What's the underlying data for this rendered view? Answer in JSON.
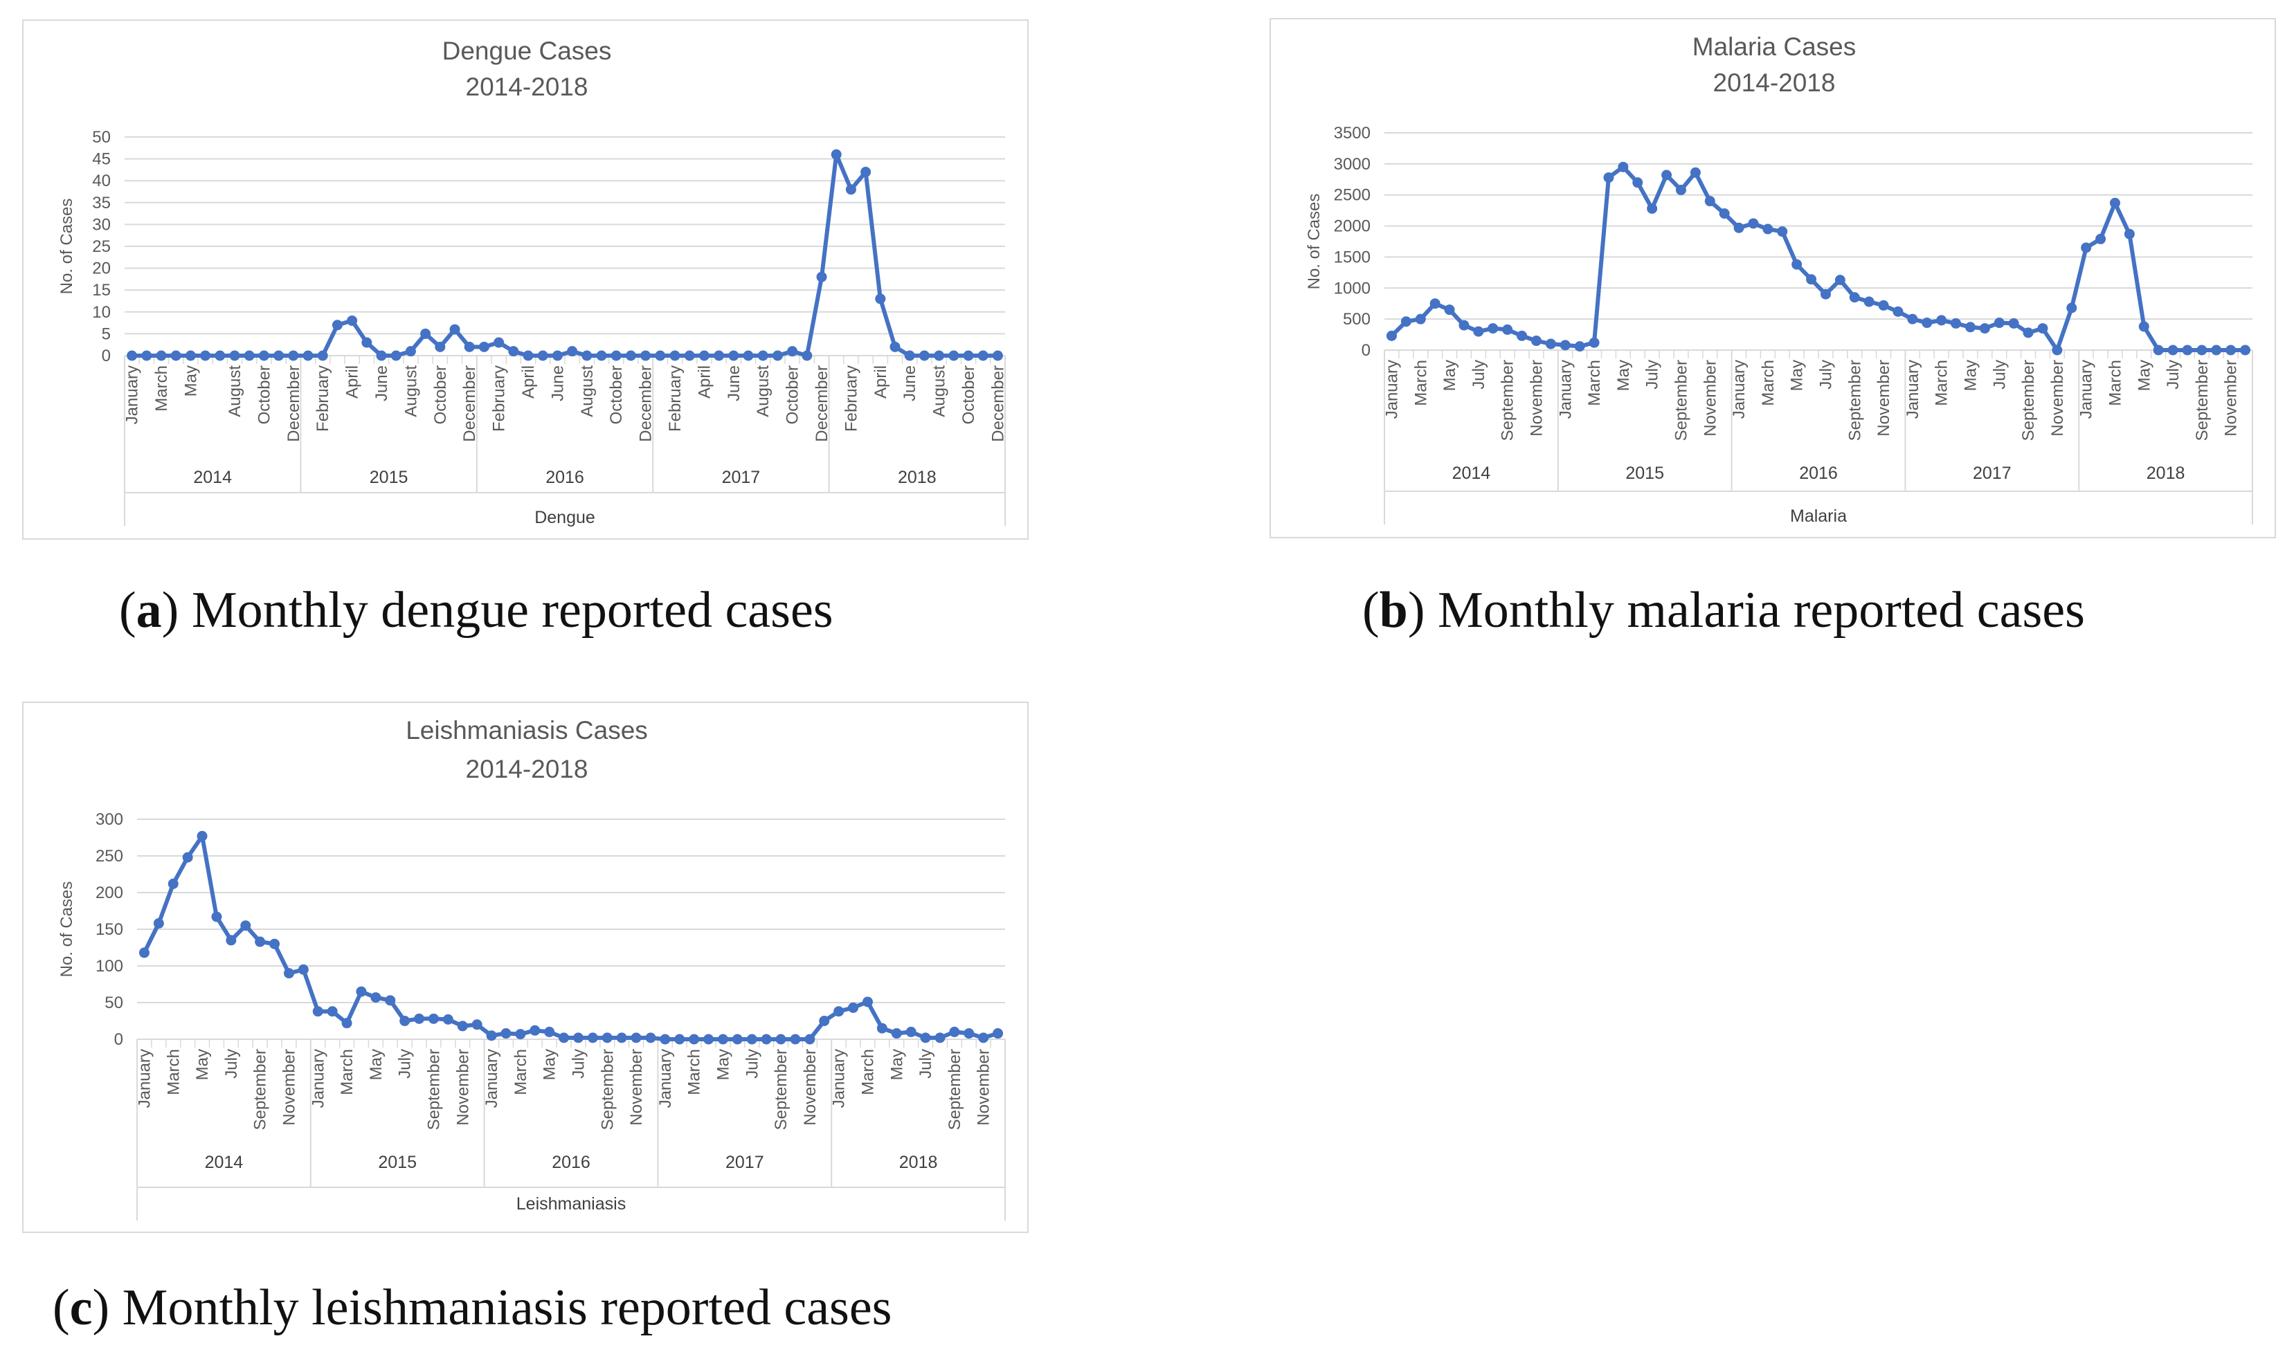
{
  "colors": {
    "series": "#4472c4",
    "grid": "#d9d9d9",
    "text": "#595959",
    "border": "#d9d9d9"
  },
  "captions": {
    "a": {
      "letter": "a",
      "text": " Monthly dengue reported  cases"
    },
    "b": {
      "letter": "b",
      "text": " Monthly malaria reported  cases"
    },
    "c": {
      "letter": "c",
      "text": " Monthly leishmaniasis reported  cases"
    }
  },
  "chart_data": [
    {
      "type": "line",
      "title": "Dengue Cases",
      "subtitle": "2014-2018",
      "ylabel": "No. of Cases",
      "xlabel": "Dengue",
      "ylim": [
        0,
        50
      ],
      "yticks": [
        0,
        5,
        10,
        15,
        20,
        25,
        30,
        35,
        40,
        45,
        50
      ],
      "grid": true,
      "legend": "none",
      "groups": [
        "2014",
        "2015",
        "2016",
        "2017",
        "2018"
      ],
      "tick_months": [
        "January",
        "March",
        "May",
        "August",
        "October",
        "December",
        "February",
        "April",
        "June",
        "August",
        "October",
        "December",
        "February",
        "April",
        "June",
        "August",
        "October",
        "December",
        "February",
        "April",
        "June",
        "August",
        "October",
        "December",
        "February",
        "April",
        "June",
        "August",
        "October",
        "December"
      ],
      "tick_positions": [
        0,
        2,
        4,
        7,
        9,
        11,
        13,
        15,
        17,
        19,
        21,
        23,
        25,
        27,
        29,
        31,
        33,
        35,
        37,
        39,
        41,
        43,
        45,
        47,
        49,
        51,
        53,
        55,
        57,
        59
      ],
      "group_boundaries": [
        0,
        11.5,
        23.5,
        35.5,
        47.5,
        59
      ],
      "series": [
        {
          "name": "Dengue",
          "values": [
            0,
            0,
            0,
            0,
            0,
            0,
            0,
            0,
            0,
            0,
            0,
            0,
            0,
            0,
            7,
            8,
            3,
            0,
            0,
            1,
            5,
            2,
            6,
            2,
            2,
            3,
            1,
            0,
            0,
            0,
            1,
            0,
            0,
            0,
            0,
            0,
            0,
            0,
            0,
            0,
            0,
            0,
            0,
            0,
            0,
            1,
            0,
            18,
            46,
            38,
            42,
            13,
            2,
            0,
            0,
            0,
            0,
            0,
            0,
            0
          ]
        }
      ]
    },
    {
      "type": "line",
      "title": "Malaria Cases",
      "subtitle": "2014-2018",
      "ylabel": "No. of Cases",
      "xlabel": "Malaria",
      "ylim": [
        0,
        3500
      ],
      "yticks": [
        0,
        500,
        1000,
        1500,
        2000,
        2500,
        3000,
        3500
      ],
      "grid": true,
      "legend": "none",
      "groups": [
        "2014",
        "2015",
        "2016",
        "2017",
        "2018"
      ],
      "tick_months": [
        "January",
        "March",
        "May",
        "July",
        "September",
        "November",
        "January",
        "March",
        "May",
        "July",
        "September",
        "November",
        "January",
        "March",
        "May",
        "July",
        "September",
        "November",
        "January",
        "March",
        "May",
        "July",
        "September",
        "November",
        "January",
        "March",
        "May",
        "July",
        "September",
        "November"
      ],
      "tick_positions": [
        0,
        2,
        4,
        6,
        8,
        10,
        12,
        14,
        16,
        18,
        20,
        22,
        24,
        26,
        28,
        30,
        32,
        34,
        36,
        38,
        40,
        42,
        44,
        46,
        48,
        50,
        52,
        54,
        56,
        58
      ],
      "group_boundaries": [
        0,
        12,
        24,
        36,
        48,
        59
      ],
      "series": [
        {
          "name": "Malaria",
          "values": [
            230,
            460,
            500,
            750,
            650,
            400,
            300,
            350,
            330,
            230,
            150,
            100,
            80,
            60,
            120,
            2780,
            2950,
            2700,
            2280,
            2820,
            2580,
            2860,
            2400,
            2200,
            1970,
            2040,
            1950,
            1910,
            1380,
            1140,
            900,
            1130,
            850,
            780,
            720,
            620,
            500,
            440,
            480,
            430,
            370,
            350,
            440,
            430,
            280,
            350,
            0,
            680,
            1650,
            1790,
            2370,
            1870,
            380,
            0,
            0,
            0,
            0,
            0,
            0,
            0
          ]
        }
      ]
    },
    {
      "type": "line",
      "title": "Leishmaniasis Cases",
      "subtitle": "2014-2018",
      "ylabel": "No. of Cases",
      "xlabel": "Leishmaniasis",
      "ylim": [
        0,
        300
      ],
      "yticks": [
        0,
        50,
        100,
        150,
        200,
        250,
        300
      ],
      "grid": true,
      "legend": "none",
      "groups": [
        "2014",
        "2015",
        "2016",
        "2017",
        "2018"
      ],
      "tick_months": [
        "January",
        "March",
        "May",
        "July",
        "September",
        "November",
        "January",
        "March",
        "May",
        "July",
        "September",
        "November",
        "January",
        "March",
        "May",
        "July",
        "September",
        "November",
        "January",
        "March",
        "May",
        "July",
        "September",
        "November",
        "January",
        "March",
        "May",
        "July",
        "September",
        "November"
      ],
      "tick_positions": [
        0,
        2,
        4,
        6,
        8,
        10,
        12,
        14,
        16,
        18,
        20,
        22,
        24,
        26,
        28,
        30,
        32,
        34,
        36,
        38,
        40,
        42,
        44,
        46,
        48,
        50,
        52,
        54,
        56,
        58
      ],
      "group_boundaries": [
        0,
        12,
        24,
        36,
        48,
        59
      ],
      "series": [
        {
          "name": "Leishmaniasis",
          "values": [
            118,
            158,
            212,
            248,
            277,
            167,
            135,
            155,
            133,
            130,
            90,
            95,
            38,
            38,
            22,
            65,
            57,
            53,
            25,
            28,
            28,
            27,
            18,
            20,
            5,
            8,
            7,
            12,
            10,
            2,
            2,
            2,
            2,
            2,
            2,
            2,
            0,
            0,
            0,
            0,
            0,
            0,
            0,
            0,
            0,
            0,
            0,
            25,
            38,
            43,
            51,
            15,
            8,
            10,
            2,
            2,
            10,
            8,
            2,
            8
          ]
        }
      ]
    }
  ]
}
